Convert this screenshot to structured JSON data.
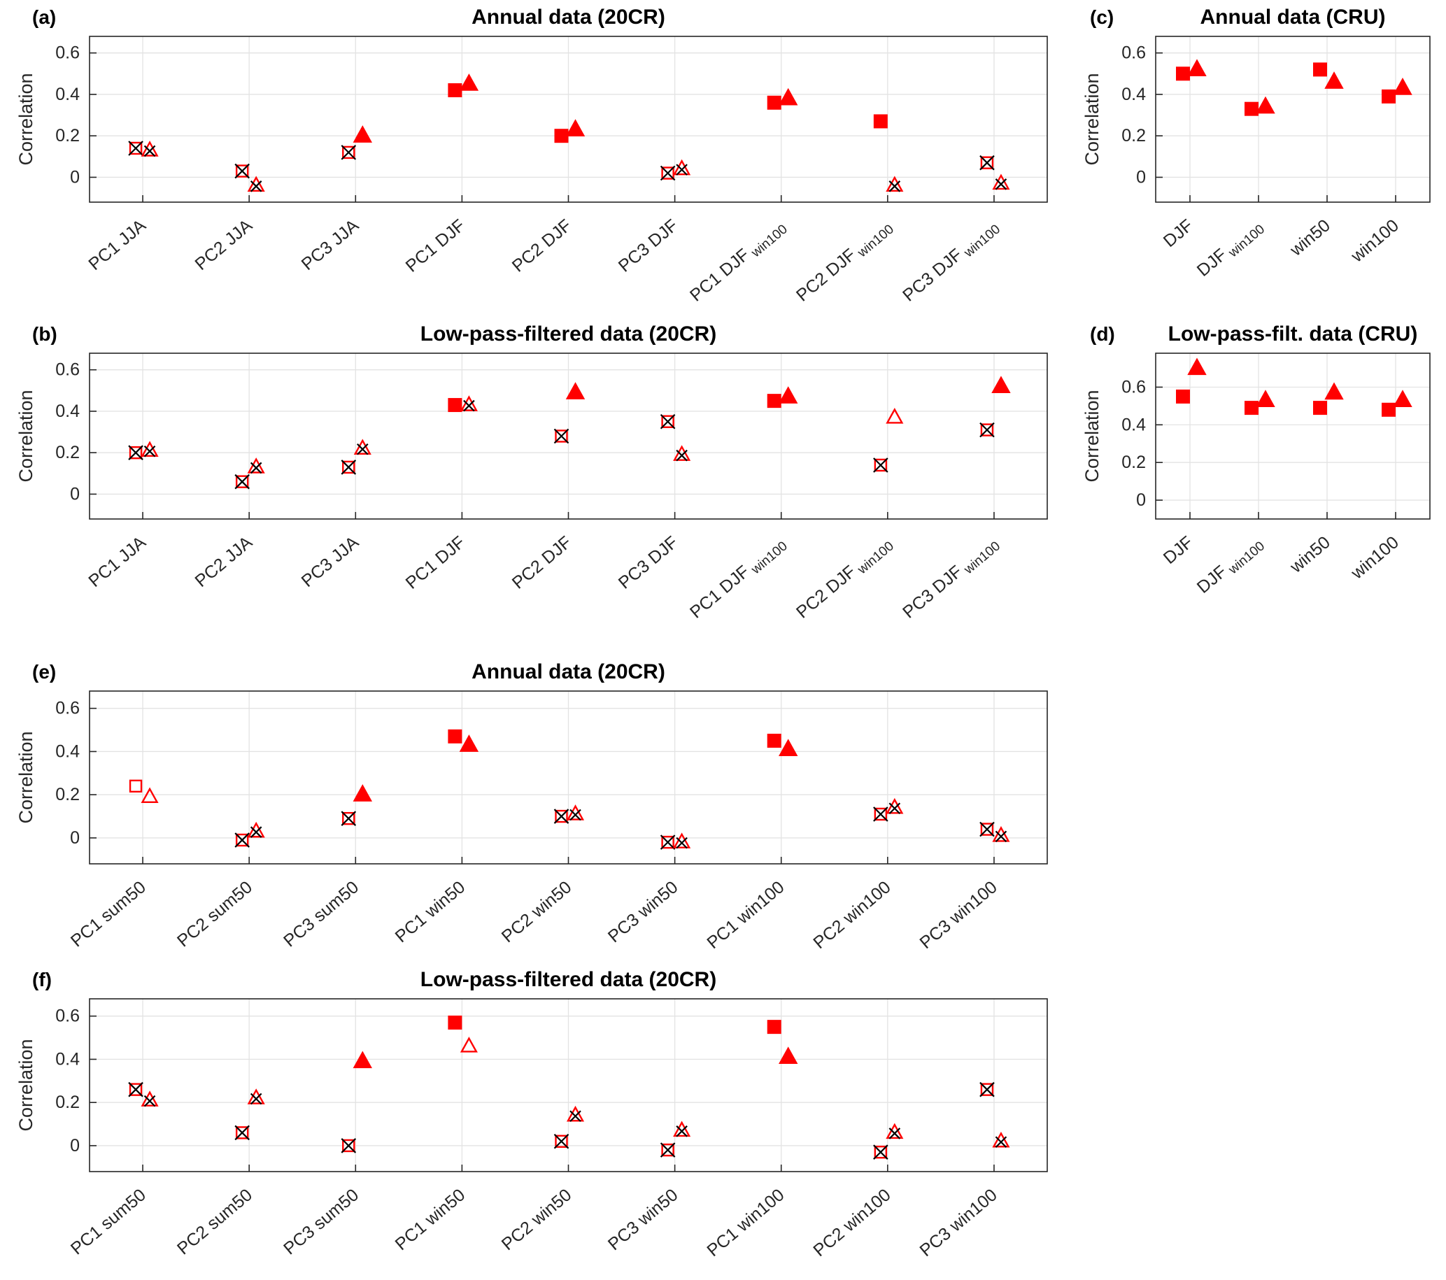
{
  "figure": {
    "marker_color": "#ff0000",
    "x_mark_color": "#000000",
    "grid_color": "#e3e3e3",
    "axis_color": "#262626",
    "background": "#ffffff"
  },
  "chart_data": [
    {
      "id": "a",
      "label": "(a)",
      "title": "Annual data (20CR)",
      "type": "scatter",
      "ylabel": "Correlation",
      "yticks": [
        0,
        0.2,
        0.4,
        0.6
      ],
      "ylim": [
        -0.12,
        0.68
      ],
      "grid": true,
      "legend_position": "none",
      "categories": [
        {
          "main": "PC1 JJA",
          "sub": ""
        },
        {
          "main": "PC2 JJA",
          "sub": ""
        },
        {
          "main": "PC3 JJA",
          "sub": ""
        },
        {
          "main": "PC1 DJF",
          "sub": ""
        },
        {
          "main": "PC2 DJF",
          "sub": ""
        },
        {
          "main": "PC3 DJF",
          "sub": ""
        },
        {
          "main": "PC1 DJF",
          "sub": "win100"
        },
        {
          "main": "PC2 DJF",
          "sub": "win100"
        },
        {
          "main": "PC3 DJF",
          "sub": "win100"
        }
      ],
      "series": [
        {
          "name": "square-marker",
          "marker": "square",
          "values": [
            0.14,
            0.03,
            0.12,
            0.42,
            0.2,
            0.02,
            0.36,
            0.27,
            0.07
          ],
          "styles": [
            "open_x",
            "open_x",
            "open_x",
            "filled",
            "filled",
            "open_x",
            "filled",
            "filled",
            "open_x"
          ]
        },
        {
          "name": "triangle-marker",
          "marker": "triangle",
          "values": [
            0.13,
            -0.04,
            0.2,
            0.45,
            0.23,
            0.04,
            0.38,
            -0.04,
            -0.03
          ],
          "styles": [
            "open_x",
            "open_x",
            "filled",
            "filled",
            "filled",
            "open_x",
            "filled",
            "open_x",
            "open_x"
          ]
        }
      ]
    },
    {
      "id": "b",
      "label": "(b)",
      "title": "Low-pass-filtered data (20CR)",
      "type": "scatter",
      "ylabel": "Correlation",
      "yticks": [
        0,
        0.2,
        0.4,
        0.6
      ],
      "ylim": [
        -0.12,
        0.68
      ],
      "grid": true,
      "legend_position": "none",
      "categories": [
        {
          "main": "PC1 JJA",
          "sub": ""
        },
        {
          "main": "PC2 JJA",
          "sub": ""
        },
        {
          "main": "PC3 JJA",
          "sub": ""
        },
        {
          "main": "PC1 DJF",
          "sub": ""
        },
        {
          "main": "PC2 DJF",
          "sub": ""
        },
        {
          "main": "PC3 DJF",
          "sub": ""
        },
        {
          "main": "PC1 DJF",
          "sub": "win100"
        },
        {
          "main": "PC2 DJF",
          "sub": "win100"
        },
        {
          "main": "PC3 DJF",
          "sub": "win100"
        }
      ],
      "series": [
        {
          "name": "square-marker",
          "marker": "square",
          "values": [
            0.2,
            0.06,
            0.13,
            0.43,
            0.28,
            0.35,
            0.45,
            0.14,
            0.31
          ],
          "styles": [
            "open_x",
            "open_x",
            "open_x",
            "filled",
            "open_x",
            "open_x",
            "filled",
            "open_x",
            "open_x"
          ]
        },
        {
          "name": "triangle-marker",
          "marker": "triangle",
          "values": [
            0.21,
            0.13,
            0.22,
            0.43,
            0.49,
            0.19,
            0.47,
            0.37,
            0.52
          ],
          "styles": [
            "open_x",
            "open_x",
            "open_x",
            "open_x",
            "filled",
            "open_x",
            "filled",
            "open",
            "filled"
          ]
        }
      ]
    },
    {
      "id": "c",
      "label": "(c)",
      "title": "Annual data (CRU)",
      "type": "scatter",
      "ylabel": "Correlation",
      "yticks": [
        0,
        0.2,
        0.4,
        0.6
      ],
      "ylim": [
        -0.12,
        0.68
      ],
      "grid": true,
      "legend_position": "none",
      "categories": [
        {
          "main": "DJF",
          "sub": ""
        },
        {
          "main": "DJF",
          "sub": "win100"
        },
        {
          "main": "win50",
          "sub": ""
        },
        {
          "main": "win100",
          "sub": ""
        }
      ],
      "series": [
        {
          "name": "square-marker",
          "marker": "square",
          "values": [
            0.5,
            0.33,
            0.52,
            0.39
          ],
          "styles": [
            "filled",
            "filled",
            "filled",
            "filled"
          ]
        },
        {
          "name": "triangle-marker",
          "marker": "triangle",
          "values": [
            0.52,
            0.34,
            0.46,
            0.43
          ],
          "styles": [
            "filled",
            "filled",
            "filled",
            "filled"
          ]
        }
      ]
    },
    {
      "id": "d",
      "label": "(d)",
      "title": "Low-pass-filt. data (CRU)",
      "type": "scatter",
      "ylabel": "Correlation",
      "yticks": [
        0,
        0.2,
        0.4,
        0.6
      ],
      "ylim": [
        -0.1,
        0.78
      ],
      "grid": true,
      "legend_position": "none",
      "categories": [
        {
          "main": "DJF",
          "sub": ""
        },
        {
          "main": "DJF",
          "sub": "win100"
        },
        {
          "main": "win50",
          "sub": ""
        },
        {
          "main": "win100",
          "sub": ""
        }
      ],
      "series": [
        {
          "name": "square-marker",
          "marker": "square",
          "values": [
            0.55,
            0.49,
            0.49,
            0.48
          ],
          "styles": [
            "filled",
            "filled",
            "filled",
            "filled"
          ]
        },
        {
          "name": "triangle-marker",
          "marker": "triangle",
          "values": [
            0.7,
            0.53,
            0.57,
            0.53
          ],
          "styles": [
            "filled",
            "filled",
            "filled",
            "filled"
          ]
        }
      ]
    },
    {
      "id": "e",
      "label": "(e)",
      "title": "Annual data (20CR)",
      "type": "scatter",
      "ylabel": "Correlation",
      "yticks": [
        0,
        0.2,
        0.4,
        0.6
      ],
      "ylim": [
        -0.12,
        0.68
      ],
      "grid": true,
      "legend_position": "none",
      "categories": [
        {
          "main": "PC1 sum50",
          "sub": ""
        },
        {
          "main": "PC2 sum50",
          "sub": ""
        },
        {
          "main": "PC3 sum50",
          "sub": ""
        },
        {
          "main": "PC1 win50",
          "sub": ""
        },
        {
          "main": "PC2 win50",
          "sub": ""
        },
        {
          "main": "PC3 win50",
          "sub": ""
        },
        {
          "main": "PC1 win100",
          "sub": ""
        },
        {
          "main": "PC2 win100",
          "sub": ""
        },
        {
          "main": "PC3 win100",
          "sub": ""
        }
      ],
      "series": [
        {
          "name": "square-marker",
          "marker": "square",
          "values": [
            0.24,
            -0.01,
            0.09,
            0.47,
            0.1,
            -0.02,
            0.45,
            0.11,
            0.04
          ],
          "styles": [
            "open",
            "open_x",
            "open_x",
            "filled",
            "open_x",
            "open_x",
            "filled",
            "open_x",
            "open_x"
          ]
        },
        {
          "name": "triangle-marker",
          "marker": "triangle",
          "values": [
            0.19,
            0.03,
            0.2,
            0.43,
            0.11,
            -0.02,
            0.41,
            0.14,
            0.01
          ],
          "styles": [
            "open",
            "open_x",
            "filled",
            "filled",
            "open_x",
            "open_x",
            "filled",
            "open_x",
            "open_x"
          ]
        }
      ]
    },
    {
      "id": "f",
      "label": "(f)",
      "title": "Low-pass-filtered data (20CR)",
      "type": "scatter",
      "ylabel": "Correlation",
      "yticks": [
        0,
        0.2,
        0.4,
        0.6
      ],
      "ylim": [
        -0.12,
        0.68
      ],
      "grid": true,
      "legend_position": "none",
      "categories": [
        {
          "main": "PC1 sum50",
          "sub": ""
        },
        {
          "main": "PC2 sum50",
          "sub": ""
        },
        {
          "main": "PC3 sum50",
          "sub": ""
        },
        {
          "main": "PC1 win50",
          "sub": ""
        },
        {
          "main": "PC2 win50",
          "sub": ""
        },
        {
          "main": "PC3 win50",
          "sub": ""
        },
        {
          "main": "PC1 win100",
          "sub": ""
        },
        {
          "main": "PC2 win100",
          "sub": ""
        },
        {
          "main": "PC3 win100",
          "sub": ""
        }
      ],
      "series": [
        {
          "name": "square-marker",
          "marker": "square",
          "values": [
            0.26,
            0.06,
            0.0,
            0.57,
            0.02,
            -0.02,
            0.55,
            -0.03,
            0.26
          ],
          "styles": [
            "open_x",
            "open_x",
            "open_x",
            "filled",
            "open_x",
            "open_x",
            "filled",
            "open_x",
            "open_x"
          ]
        },
        {
          "name": "triangle-marker",
          "marker": "triangle",
          "values": [
            0.21,
            0.22,
            0.39,
            0.46,
            0.14,
            0.07,
            0.41,
            0.06,
            0.02
          ],
          "styles": [
            "open_x",
            "open_x",
            "filled",
            "open",
            "open_x",
            "open_x",
            "filled",
            "open_x",
            "open_x"
          ]
        }
      ]
    }
  ]
}
